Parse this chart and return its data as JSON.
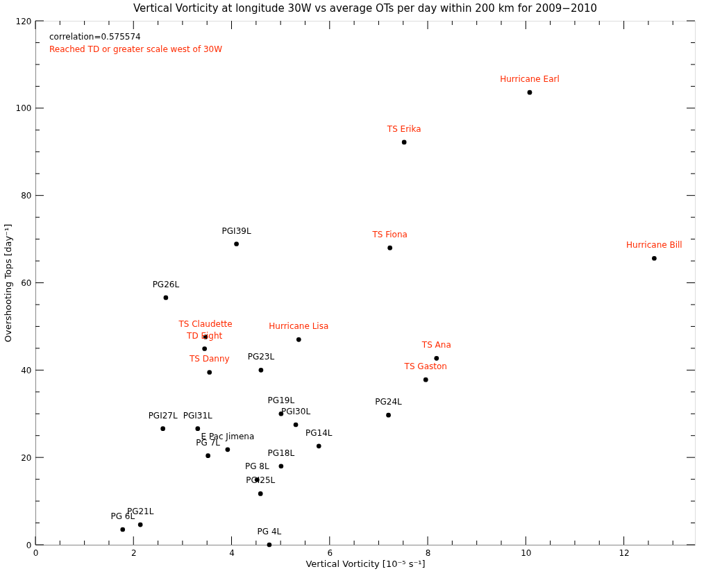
{
  "chart_data": {
    "type": "scatter",
    "title": "Vertical Vorticity at longitude 30W vs average OTs per day within 200 km for 2009−2010",
    "xlabel": "Vertical Vorticity [10⁻⁵ s⁻¹]",
    "ylabel": "Overshooting Tops [day⁻¹]",
    "xlim": [
      0,
      13.45
    ],
    "ylim": [
      0,
      120
    ],
    "xticks": [
      0,
      {
        "value": 0.5,
        "label": null
      },
      {
        "value": 1,
        "label": null
      },
      {
        "value": 1.5,
        "label": null
      },
      2,
      {
        "value": 2.5,
        "label": null
      },
      {
        "value": 3,
        "label": null
      },
      {
        "value": 3.5,
        "label": null
      },
      4,
      {
        "value": 4.5,
        "label": null
      },
      {
        "value": 5,
        "label": null
      },
      {
        "value": 5.5,
        "label": null
      },
      6,
      {
        "value": 6.5,
        "label": null
      },
      {
        "value": 7,
        "label": null
      },
      {
        "value": 7.5,
        "label": null
      },
      8,
      {
        "value": 8.5,
        "label": null
      },
      {
        "value": 9,
        "label": null
      },
      {
        "value": 9.5,
        "label": null
      },
      10,
      {
        "value": 10.5,
        "label": null
      },
      {
        "value": 11,
        "label": null
      },
      {
        "value": 11.5,
        "label": null
      },
      12,
      {
        "value": 12.5,
        "label": null
      },
      {
        "value": 13,
        "label": null
      }
    ],
    "yticks": [
      0,
      {
        "value": 5,
        "label": null
      },
      {
        "value": 10,
        "label": null
      },
      {
        "value": 15,
        "label": null
      },
      20,
      {
        "value": 25,
        "label": null
      },
      {
        "value": 30,
        "label": null
      },
      {
        "value": 35,
        "label": null
      },
      40,
      {
        "value": 45,
        "label": null
      },
      {
        "value": 50,
        "label": null
      },
      {
        "value": 55,
        "label": null
      },
      60,
      {
        "value": 65,
        "label": null
      },
      {
        "value": 70,
        "label": null
      },
      {
        "value": 75,
        "label": null
      },
      80,
      {
        "value": 85,
        "label": null
      },
      {
        "value": 90,
        "label": null
      },
      {
        "value": 95,
        "label": null
      },
      100,
      {
        "value": 105,
        "label": null
      },
      {
        "value": 110,
        "label": null
      },
      {
        "value": 115,
        "label": null
      },
      120
    ],
    "grid": false,
    "legend": false,
    "marker": "circle",
    "series": [
      {
        "color": "#000000",
        "x": [
          10.08,
          7.52,
          7.23,
          12.62,
          3.47,
          3.45,
          5.37,
          8.18,
          7.96,
          3.55
        ],
        "values": [
          103.6,
          92.2,
          68.0,
          65.6,
          47.6,
          44.9,
          47.0,
          42.7,
          37.8,
          39.5
        ],
        "value_labels": [
          "Hurricane Earl",
          "TS Erika",
          "TS Fiona",
          "Hurricane Bill",
          "TS Claudette",
          "TD Eight",
          "Hurricane Lisa",
          "TS Ana",
          "TS Gaston",
          "TS Danny"
        ]
      },
      {
        "color": "#000000",
        "x": [
          4.1,
          2.66,
          4.6,
          5.01,
          5.31,
          7.2,
          2.6,
          3.31,
          3.92,
          3.52,
          5.78,
          5.01,
          4.52,
          4.59,
          1.78,
          2.14,
          4.77
        ],
        "values": [
          68.9,
          56.6,
          40.0,
          30.0,
          27.5,
          29.7,
          26.6,
          26.6,
          21.8,
          20.4,
          22.6,
          18.0,
          14.9,
          11.7,
          3.5,
          4.6,
          0
        ],
        "value_labels": [
          "PGI39L",
          "PG26L",
          "PG23L",
          "PG19L",
          "PGI30L",
          "PG24L",
          "PGI27L",
          "PGI31L",
          "E Pac Jimena",
          "PG 7L",
          "PG14L",
          "PG18L",
          "PG 8L",
          "PGI25L",
          "PG 6L",
          "PG21L",
          "PG 4L"
        ]
      }
    ],
    "annotations": [
      "correlation=0.575574",
      "Reached TD or greater scale west of 30W"
    ]
  }
}
